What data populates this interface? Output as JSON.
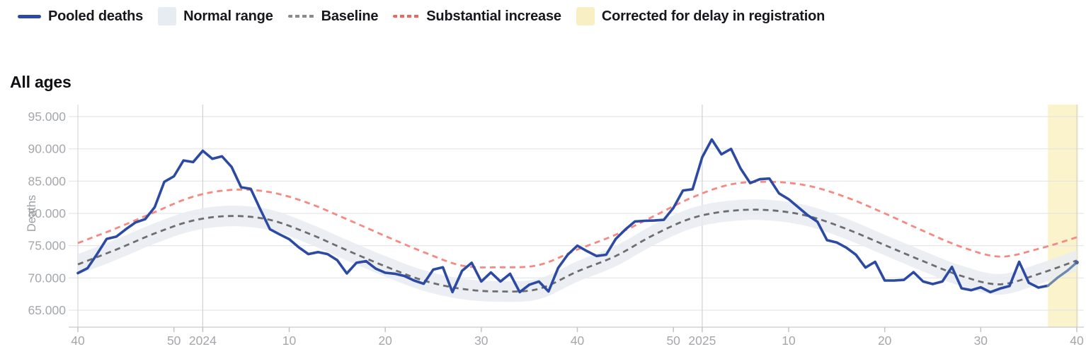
{
  "page": {
    "background": "#ffffff"
  },
  "legend": {
    "items": [
      {
        "label": "Pooled deaths",
        "swatch": "line",
        "color": "#2c4aa4"
      },
      {
        "label": "Normal range",
        "swatch": "box",
        "color": "#e7ecf2"
      },
      {
        "label": "Baseline",
        "swatch": "dashes",
        "color": "#8a8a8e"
      },
      {
        "label": "Substantial increase",
        "swatch": "dashes",
        "color": "#f2645c"
      },
      {
        "label": "Corrected for delay in registration",
        "swatch": "box",
        "color": "#f9efc4"
      }
    ]
  },
  "section": {
    "title": "All ages"
  },
  "colors": {
    "grid_h": "#dfe1e3",
    "grid_v": "#cfd1d3",
    "axis_line": "#c9cbcd",
    "tick": "#c2c4c6",
    "tick_label": "#a4a7ab",
    "axis_title": "#9aa0a6"
  },
  "chart_data": {
    "type": "line",
    "title": "All ages",
    "ylabel": "Deaths",
    "xlabel": "",
    "x_unit": "ISO week, 2023-W40 through 2025-W40 (weekly)",
    "ylim": [
      62400,
      96900
    ],
    "grid": true,
    "legend_position": "top-left",
    "yticks": [
      {
        "label": "95.000",
        "value": 95000
      },
      {
        "label": "90.000",
        "value": 90000
      },
      {
        "label": "85.000",
        "value": 85000
      },
      {
        "label": "80.000",
        "value": 80000
      },
      {
        "label": "75.000",
        "value": 75000
      },
      {
        "label": "70.000",
        "value": 70000
      },
      {
        "label": "65.000",
        "value": 65000
      }
    ],
    "xticks": [
      {
        "i": 0,
        "label": "40"
      },
      {
        "i": 10,
        "label": "50"
      },
      {
        "i": 13,
        "label": "2024",
        "year_line": true
      },
      {
        "i": 22,
        "label": "10"
      },
      {
        "i": 32,
        "label": "20"
      },
      {
        "i": 42,
        "label": "30"
      },
      {
        "i": 52,
        "label": "40"
      },
      {
        "i": 62,
        "label": "50"
      },
      {
        "i": 65,
        "label": "2025",
        "year_line": true
      },
      {
        "i": 74,
        "label": "10"
      },
      {
        "i": 84,
        "label": "20"
      },
      {
        "i": 94,
        "label": "30"
      },
      {
        "i": 104,
        "label": "40"
      }
    ],
    "series": {
      "pooled_deaths": {
        "name": "Pooled deaths",
        "color": "#2c4aa4",
        "start_week": "2023-W40",
        "weekly_values": [
          70750,
          71500,
          73700,
          76050,
          76400,
          77550,
          78600,
          79100,
          80950,
          84900,
          85750,
          88200,
          87950,
          89700,
          88450,
          88850,
          87200,
          84050,
          83800,
          80600,
          77550,
          76750,
          76000,
          74750,
          73700,
          74000,
          73700,
          72750,
          70700,
          72350,
          72600,
          71450,
          70800,
          70650,
          70300,
          69600,
          69100,
          71300,
          71650,
          67800,
          71100,
          72350,
          69450,
          70850,
          69450,
          70650,
          67800,
          68950,
          69450,
          67900,
          71550,
          73600,
          75000,
          74150,
          73400,
          73600,
          76050,
          77500,
          78750,
          78850,
          78900,
          79000,
          80850,
          83550,
          83750,
          88700,
          91450,
          89150,
          90000,
          86950,
          84700,
          85300,
          85400,
          83100,
          82200,
          80950,
          79700,
          78700,
          75850,
          75500,
          74700,
          73600,
          71600,
          72500,
          69600,
          69600,
          69700,
          70900,
          69450,
          69050,
          69450,
          71700,
          68400,
          68100,
          68550,
          67800,
          68350,
          68750,
          72500,
          69250,
          68500,
          68800,
          70050,
          71100,
          72400
        ]
      },
      "corrected": {
        "name": "Corrected for delay in registration",
        "start_index": 101,
        "line_color": "#6d89ac",
        "band_color": "#fbf3cc"
      },
      "baseline": {
        "name": "Baseline",
        "color": "#6e6e72",
        "anchors": [
          [
            0,
            72100
          ],
          [
            4,
            74400
          ],
          [
            8,
            76900
          ],
          [
            12,
            78900
          ],
          [
            16,
            79600
          ],
          [
            20,
            79000
          ],
          [
            24,
            76900
          ],
          [
            28,
            74300
          ],
          [
            32,
            71800
          ],
          [
            36,
            69600
          ],
          [
            40,
            68300
          ],
          [
            44,
            67900
          ],
          [
            48,
            68300
          ],
          [
            52,
            71000
          ],
          [
            56,
            73400
          ],
          [
            60,
            76700
          ],
          [
            64,
            79300
          ],
          [
            68,
            80400
          ],
          [
            72,
            80500
          ],
          [
            76,
            79600
          ],
          [
            80,
            77600
          ],
          [
            84,
            75100
          ],
          [
            88,
            72600
          ],
          [
            92,
            70300
          ],
          [
            96,
            69000
          ],
          [
            100,
            70600
          ],
          [
            104,
            72700
          ]
        ]
      },
      "substantial_increase": {
        "name": "Substantial increase",
        "color": "#f5837b",
        "anchors": [
          [
            0,
            75400
          ],
          [
            4,
            77700
          ],
          [
            8,
            80200
          ],
          [
            12,
            82600
          ],
          [
            16,
            83650
          ],
          [
            20,
            83300
          ],
          [
            24,
            81600
          ],
          [
            28,
            79100
          ],
          [
            32,
            76500
          ],
          [
            36,
            74000
          ],
          [
            40,
            71900
          ],
          [
            44,
            71650
          ],
          [
            48,
            72000
          ],
          [
            52,
            74400
          ],
          [
            56,
            76700
          ],
          [
            60,
            79600
          ],
          [
            64,
            82500
          ],
          [
            68,
            84500
          ],
          [
            72,
            84900
          ],
          [
            76,
            84300
          ],
          [
            80,
            82500
          ],
          [
            84,
            80000
          ],
          [
            88,
            77300
          ],
          [
            92,
            74800
          ],
          [
            96,
            73300
          ],
          [
            100,
            74500
          ],
          [
            104,
            76300
          ]
        ]
      },
      "normal_range": {
        "name": "Normal range",
        "fill": "#e7ecf1",
        "halfwidth": 1600
      }
    }
  }
}
